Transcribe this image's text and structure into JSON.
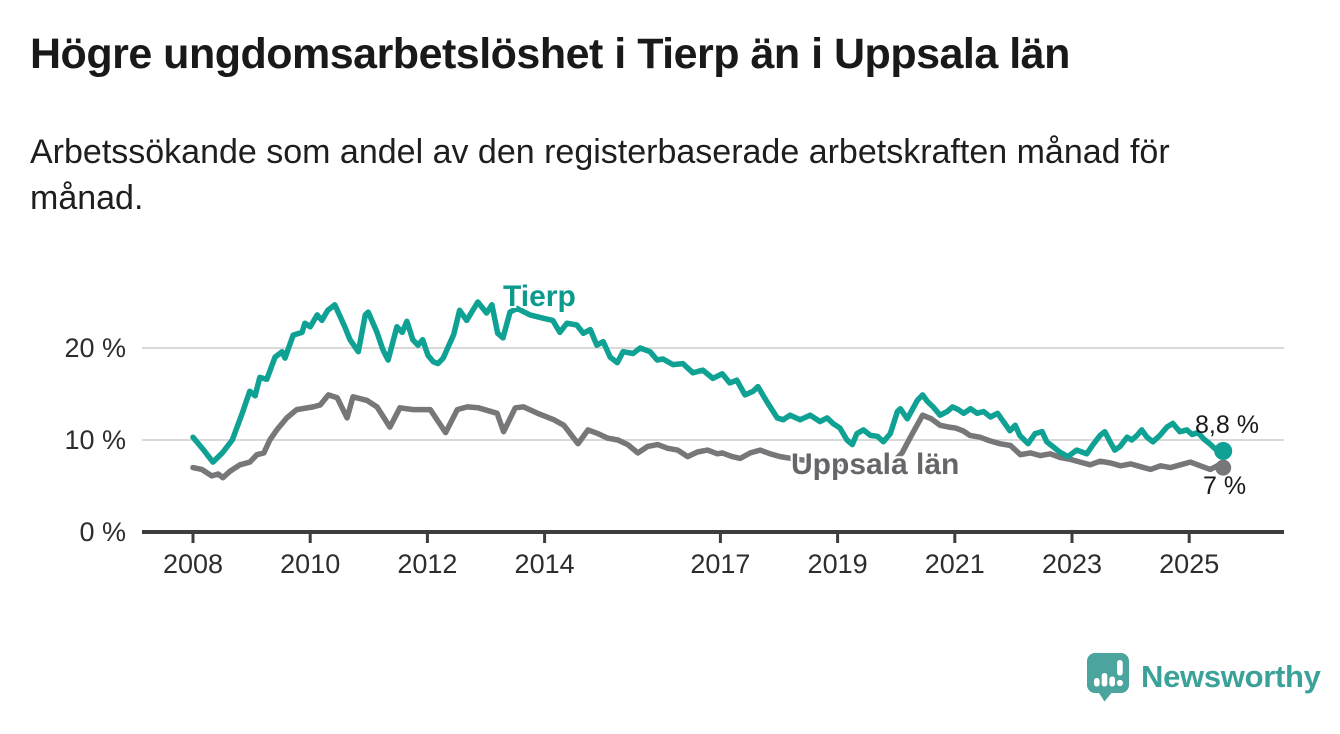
{
  "header": {
    "title": "Högre ungdomsarbetslöshet i Tierp än i Uppsala län",
    "subtitle": "Arbetssökande som andel av den registerbaserade arbetskraften månad för månad."
  },
  "branding": {
    "logo_text": "Newsworthy",
    "icon": "newsworthy-pin-barchart-icon",
    "icon_color": "#4BA49D",
    "text_color": "#3BA29A"
  },
  "chart_data": {
    "type": "line",
    "title": "Högre ungdomsarbetslöshet i Tierp än i Uppsala län",
    "subtitle": "Arbetssökande som andel av den registerbaserade arbetskraften månad för månad.",
    "unit": "%",
    "grid": "horizontal",
    "legend": "inline-labels",
    "colors": {
      "axis": "#3D3D3D",
      "grid": "#D9D9D9"
    },
    "x_axis": {
      "label": "",
      "ticks": [
        {
          "year": 2008,
          "label": "2008"
        },
        {
          "year": 2010,
          "label": "2010"
        },
        {
          "year": 2012,
          "label": "2012"
        },
        {
          "year": 2014,
          "label": "2014"
        },
        {
          "year": 2017,
          "label": "2017"
        },
        {
          "year": 2019,
          "label": "2019"
        },
        {
          "year": 2021,
          "label": "2021"
        },
        {
          "year": 2023,
          "label": "2023"
        },
        {
          "year": 2025,
          "label": "2025"
        }
      ],
      "range": [
        2007.1,
        2026.6
      ]
    },
    "y_axis": {
      "label": "",
      "ticks": [
        {
          "value": 0,
          "label": "0 %"
        },
        {
          "value": 10,
          "label": "10 %"
        },
        {
          "value": 20,
          "label": "20 %"
        }
      ],
      "range": [
        0,
        28.5
      ]
    },
    "series": [
      {
        "id": "tierp",
        "name": "Tierp",
        "color": "#0FA193",
        "label_color": "#0B9A8C",
        "end_label": "8,8 %",
        "end_value": 8.8,
        "dot_radius": 9,
        "points": [
          [
            2008.0,
            10.3
          ],
          [
            2008.17,
            9.0
          ],
          [
            2008.34,
            7.6
          ],
          [
            2008.5,
            8.6
          ],
          [
            2008.67,
            10.0
          ],
          [
            2008.84,
            12.9
          ],
          [
            2008.97,
            15.3
          ],
          [
            2009.06,
            14.8
          ],
          [
            2009.14,
            16.8
          ],
          [
            2009.26,
            16.6
          ],
          [
            2009.4,
            19.0
          ],
          [
            2009.52,
            19.6
          ],
          [
            2009.57,
            18.9
          ],
          [
            2009.71,
            21.4
          ],
          [
            2009.86,
            21.7
          ],
          [
            2009.91,
            22.7
          ],
          [
            2010.0,
            22.3
          ],
          [
            2010.12,
            23.6
          ],
          [
            2010.2,
            23.0
          ],
          [
            2010.3,
            24.1
          ],
          [
            2010.42,
            24.7
          ],
          [
            2010.59,
            22.3
          ],
          [
            2010.68,
            20.9
          ],
          [
            2010.82,
            19.6
          ],
          [
            2010.94,
            23.6
          ],
          [
            2010.99,
            23.9
          ],
          [
            2011.14,
            21.7
          ],
          [
            2011.24,
            19.8
          ],
          [
            2011.33,
            18.7
          ],
          [
            2011.48,
            22.3
          ],
          [
            2011.57,
            21.7
          ],
          [
            2011.65,
            22.9
          ],
          [
            2011.75,
            20.9
          ],
          [
            2011.84,
            20.3
          ],
          [
            2011.92,
            20.9
          ],
          [
            2012.01,
            19.2
          ],
          [
            2012.1,
            18.5
          ],
          [
            2012.18,
            18.3
          ],
          [
            2012.27,
            18.9
          ],
          [
            2012.45,
            21.5
          ],
          [
            2012.55,
            24.1
          ],
          [
            2012.67,
            23.0
          ],
          [
            2012.86,
            25.0
          ],
          [
            2013.01,
            23.8
          ],
          [
            2013.1,
            24.7
          ],
          [
            2013.2,
            21.6
          ],
          [
            2013.29,
            21.1
          ],
          [
            2013.41,
            23.9
          ],
          [
            2013.53,
            24.3
          ],
          [
            2013.75,
            23.6
          ],
          [
            2014.0,
            23.2
          ],
          [
            2014.14,
            23.0
          ],
          [
            2014.26,
            21.7
          ],
          [
            2014.38,
            22.7
          ],
          [
            2014.55,
            22.5
          ],
          [
            2014.66,
            21.6
          ],
          [
            2014.78,
            22.0
          ],
          [
            2014.89,
            20.3
          ],
          [
            2015.0,
            20.7
          ],
          [
            2015.12,
            19.0
          ],
          [
            2015.24,
            18.4
          ],
          [
            2015.34,
            19.6
          ],
          [
            2015.51,
            19.4
          ],
          [
            2015.63,
            20.0
          ],
          [
            2015.8,
            19.6
          ],
          [
            2015.92,
            18.7
          ],
          [
            2016.02,
            18.8
          ],
          [
            2016.19,
            18.2
          ],
          [
            2016.36,
            18.3
          ],
          [
            2016.53,
            17.3
          ],
          [
            2016.7,
            17.6
          ],
          [
            2016.87,
            16.7
          ],
          [
            2017.03,
            17.2
          ],
          [
            2017.16,
            16.2
          ],
          [
            2017.28,
            16.5
          ],
          [
            2017.42,
            14.9
          ],
          [
            2017.56,
            15.3
          ],
          [
            2017.64,
            15.8
          ],
          [
            2017.79,
            14.2
          ],
          [
            2017.97,
            12.4
          ],
          [
            2018.07,
            12.2
          ],
          [
            2018.19,
            12.7
          ],
          [
            2018.36,
            12.2
          ],
          [
            2018.53,
            12.7
          ],
          [
            2018.7,
            12.0
          ],
          [
            2018.82,
            12.4
          ],
          [
            2018.92,
            11.8
          ],
          [
            2019.04,
            11.3
          ],
          [
            2019.16,
            10.0
          ],
          [
            2019.25,
            9.5
          ],
          [
            2019.33,
            10.7
          ],
          [
            2019.44,
            11.1
          ],
          [
            2019.56,
            10.5
          ],
          [
            2019.68,
            10.4
          ],
          [
            2019.78,
            9.8
          ],
          [
            2019.9,
            10.7
          ],
          [
            2020.02,
            13.1
          ],
          [
            2020.07,
            13.4
          ],
          [
            2020.19,
            12.3
          ],
          [
            2020.36,
            14.3
          ],
          [
            2020.45,
            14.9
          ],
          [
            2020.53,
            14.2
          ],
          [
            2020.63,
            13.6
          ],
          [
            2020.75,
            12.7
          ],
          [
            2020.87,
            13.1
          ],
          [
            2020.96,
            13.6
          ],
          [
            2021.06,
            13.3
          ],
          [
            2021.15,
            12.9
          ],
          [
            2021.27,
            13.4
          ],
          [
            2021.38,
            12.9
          ],
          [
            2021.49,
            13.1
          ],
          [
            2021.61,
            12.5
          ],
          [
            2021.73,
            12.9
          ],
          [
            2021.83,
            12.0
          ],
          [
            2021.94,
            11.0
          ],
          [
            2022.03,
            11.6
          ],
          [
            2022.11,
            10.5
          ],
          [
            2022.25,
            9.6
          ],
          [
            2022.37,
            10.7
          ],
          [
            2022.49,
            10.9
          ],
          [
            2022.57,
            9.8
          ],
          [
            2022.67,
            9.3
          ],
          [
            2022.79,
            8.7
          ],
          [
            2022.93,
            8.2
          ],
          [
            2023.08,
            8.9
          ],
          [
            2023.25,
            8.5
          ],
          [
            2023.36,
            9.5
          ],
          [
            2023.48,
            10.5
          ],
          [
            2023.56,
            10.9
          ],
          [
            2023.65,
            9.8
          ],
          [
            2023.73,
            8.9
          ],
          [
            2023.82,
            9.3
          ],
          [
            2023.94,
            10.3
          ],
          [
            2024.02,
            10.0
          ],
          [
            2024.11,
            10.5
          ],
          [
            2024.19,
            11.1
          ],
          [
            2024.28,
            10.3
          ],
          [
            2024.38,
            9.8
          ],
          [
            2024.5,
            10.5
          ],
          [
            2024.62,
            11.4
          ],
          [
            2024.72,
            11.8
          ],
          [
            2024.84,
            10.9
          ],
          [
            2024.96,
            11.1
          ],
          [
            2025.05,
            10.6
          ],
          [
            2025.15,
            10.8
          ],
          [
            2025.25,
            10.1
          ],
          [
            2025.35,
            9.6
          ],
          [
            2025.45,
            9.0
          ],
          [
            2025.52,
            8.6
          ],
          [
            2025.58,
            8.8
          ]
        ]
      },
      {
        "id": "uppsala-lan",
        "name": "Uppsala län",
        "color": "#77777A",
        "label_color": "#66666A",
        "end_label": "7 %",
        "end_value": 7.0,
        "dot_radius": 8,
        "points": [
          [
            2008.0,
            7.0
          ],
          [
            2008.15,
            6.8
          ],
          [
            2008.32,
            6.1
          ],
          [
            2008.43,
            6.3
          ],
          [
            2008.51,
            5.9
          ],
          [
            2008.63,
            6.6
          ],
          [
            2008.8,
            7.3
          ],
          [
            2008.97,
            7.6
          ],
          [
            2009.09,
            8.4
          ],
          [
            2009.21,
            8.6
          ],
          [
            2009.31,
            10.0
          ],
          [
            2009.43,
            11.1
          ],
          [
            2009.6,
            12.4
          ],
          [
            2009.77,
            13.3
          ],
          [
            2010.05,
            13.6
          ],
          [
            2010.17,
            13.8
          ],
          [
            2010.31,
            14.9
          ],
          [
            2010.46,
            14.6
          ],
          [
            2010.63,
            12.4
          ],
          [
            2010.73,
            14.7
          ],
          [
            2010.97,
            14.3
          ],
          [
            2011.14,
            13.6
          ],
          [
            2011.36,
            11.4
          ],
          [
            2011.53,
            13.5
          ],
          [
            2011.76,
            13.3
          ],
          [
            2012.05,
            13.3
          ],
          [
            2012.31,
            10.8
          ],
          [
            2012.51,
            13.3
          ],
          [
            2012.68,
            13.6
          ],
          [
            2012.87,
            13.5
          ],
          [
            2013.19,
            12.9
          ],
          [
            2013.3,
            10.9
          ],
          [
            2013.5,
            13.5
          ],
          [
            2013.64,
            13.6
          ],
          [
            2013.88,
            12.9
          ],
          [
            2014.16,
            12.2
          ],
          [
            2014.33,
            11.6
          ],
          [
            2014.57,
            9.6
          ],
          [
            2014.74,
            11.1
          ],
          [
            2014.91,
            10.7
          ],
          [
            2015.08,
            10.2
          ],
          [
            2015.25,
            10.0
          ],
          [
            2015.42,
            9.5
          ],
          [
            2015.59,
            8.6
          ],
          [
            2015.76,
            9.3
          ],
          [
            2015.93,
            9.5
          ],
          [
            2016.1,
            9.1
          ],
          [
            2016.27,
            8.9
          ],
          [
            2016.44,
            8.2
          ],
          [
            2016.61,
            8.7
          ],
          [
            2016.78,
            8.9
          ],
          [
            2016.95,
            8.5
          ],
          [
            2017.03,
            8.6
          ],
          [
            2017.2,
            8.2
          ],
          [
            2017.34,
            8.0
          ],
          [
            2017.51,
            8.6
          ],
          [
            2017.68,
            8.9
          ],
          [
            2017.85,
            8.5
          ],
          [
            2018.02,
            8.2
          ],
          [
            2018.3,
            7.9
          ],
          [
            2018.6,
            7.7
          ],
          [
            2018.9,
            7.5
          ],
          [
            2019.2,
            7.3
          ],
          [
            2019.5,
            7.1
          ],
          [
            2019.75,
            7.3
          ],
          [
            2019.95,
            7.6
          ],
          [
            2020.1,
            8.6
          ],
          [
            2020.25,
            10.4
          ],
          [
            2020.45,
            12.7
          ],
          [
            2020.6,
            12.3
          ],
          [
            2020.75,
            11.6
          ],
          [
            2020.9,
            11.4
          ],
          [
            2021.01,
            11.3
          ],
          [
            2021.14,
            11.0
          ],
          [
            2021.26,
            10.5
          ],
          [
            2021.43,
            10.3
          ],
          [
            2021.6,
            9.9
          ],
          [
            2021.77,
            9.6
          ],
          [
            2021.95,
            9.4
          ],
          [
            2022.12,
            8.4
          ],
          [
            2022.29,
            8.6
          ],
          [
            2022.46,
            8.3
          ],
          [
            2022.63,
            8.5
          ],
          [
            2022.8,
            8.1
          ],
          [
            2022.97,
            7.9
          ],
          [
            2023.14,
            7.6
          ],
          [
            2023.31,
            7.3
          ],
          [
            2023.48,
            7.7
          ],
          [
            2023.66,
            7.5
          ],
          [
            2023.83,
            7.2
          ],
          [
            2024.0,
            7.4
          ],
          [
            2024.17,
            7.1
          ],
          [
            2024.34,
            6.8
          ],
          [
            2024.51,
            7.2
          ],
          [
            2024.68,
            7.0
          ],
          [
            2024.85,
            7.3
          ],
          [
            2025.02,
            7.6
          ],
          [
            2025.19,
            7.2
          ],
          [
            2025.36,
            6.8
          ],
          [
            2025.48,
            7.2
          ],
          [
            2025.58,
            7.0
          ]
        ]
      }
    ]
  }
}
